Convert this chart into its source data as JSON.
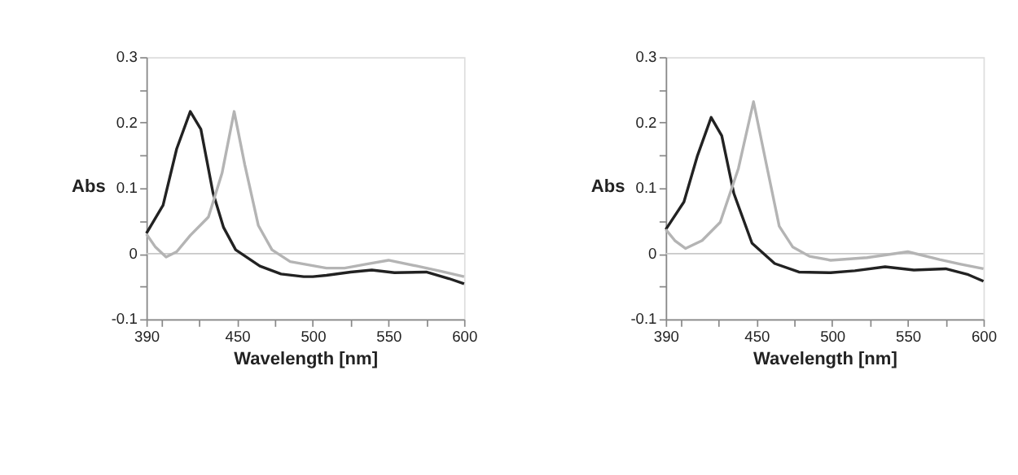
{
  "chart_data": [
    {
      "type": "line",
      "xlabel": "Wavelength [nm]",
      "ylabel": "Abs",
      "xlim": [
        390,
        600
      ],
      "ylim": [
        -0.1,
        0.3
      ],
      "xticks": [
        390,
        {
          "value": 400,
          "label": null
        },
        {
          "value": 425,
          "label": null
        },
        450,
        {
          "value": 475,
          "label": null
        },
        500,
        {
          "value": 525,
          "label": null
        },
        550,
        {
          "value": 575,
          "label": null
        },
        600
      ],
      "yticks": [
        -0.1,
        {
          "value": -0.05,
          "label": null
        },
        0,
        {
          "value": 0.05,
          "label": null
        },
        0.1,
        {
          "value": 0.15,
          "label": null
        },
        0.2,
        {
          "value": 0.25,
          "label": null
        },
        0.3
      ],
      "grid": false,
      "legend": false,
      "line_style": "solid",
      "marker": "none",
      "ref_lines": [
        {
          "axis": "y",
          "value": 0,
          "color": "#c8c8c8"
        }
      ],
      "series": [
        {
          "color": "#222222",
          "x": [
            390,
            401,
            410,
            419,
            426,
            434,
            441,
            449,
            465,
            479,
            494,
            500,
            509,
            525,
            539,
            554,
            575,
            590,
            600
          ],
          "values": [
            0.031,
            0.074,
            0.16,
            0.217,
            0.19,
            0.093,
            0.04,
            0.006,
            -0.019,
            -0.031,
            -0.035,
            -0.035,
            -0.033,
            -0.028,
            -0.025,
            -0.029,
            -0.028,
            -0.038,
            -0.046
          ]
        },
        {
          "color": "#b4b4b4",
          "x": [
            390,
            396,
            403,
            410,
            419,
            431,
            440,
            448,
            455,
            464,
            473,
            485,
            509,
            521,
            535,
            550,
            569,
            585,
            600
          ],
          "values": [
            0.03,
            0.01,
            -0.005,
            0.003,
            0.028,
            0.056,
            0.123,
            0.217,
            0.136,
            0.043,
            0.006,
            -0.012,
            -0.022,
            -0.022,
            -0.016,
            -0.01,
            -0.019,
            -0.027,
            -0.035
          ]
        }
      ]
    },
    {
      "type": "line",
      "xlabel": "Wavelength [nm]",
      "ylabel": "Abs",
      "xlim": [
        390,
        600
      ],
      "ylim": [
        -0.1,
        0.3
      ],
      "xticks": [
        390,
        {
          "value": 400,
          "label": null
        },
        {
          "value": 425,
          "label": null
        },
        450,
        {
          "value": 475,
          "label": null
        },
        500,
        {
          "value": 525,
          "label": null
        },
        550,
        {
          "value": 575,
          "label": null
        },
        600
      ],
      "yticks": [
        -0.1,
        {
          "value": -0.05,
          "label": null
        },
        0,
        {
          "value": 0.05,
          "label": null
        },
        0.1,
        {
          "value": 0.15,
          "label": null
        },
        0.2,
        {
          "value": 0.25,
          "label": null
        },
        0.3
      ],
      "grid": false,
      "legend": false,
      "line_style": "solid",
      "marker": "none",
      "ref_lines": [
        {
          "axis": "y",
          "value": 0,
          "color": "#c8c8c8"
        }
      ],
      "series": [
        {
          "color": "#222222",
          "x": [
            390,
            402,
            411,
            420,
            427,
            435,
            447,
            462,
            478,
            499,
            515,
            535,
            554,
            575,
            590,
            600
          ],
          "values": [
            0.037,
            0.079,
            0.15,
            0.208,
            0.18,
            0.092,
            0.016,
            -0.015,
            -0.028,
            -0.029,
            -0.026,
            -0.02,
            -0.025,
            -0.023,
            -0.032,
            -0.042
          ]
        },
        {
          "color": "#b4b4b4",
          "x": [
            390,
            396,
            403,
            414,
            426,
            438,
            448,
            456,
            465,
            474,
            485,
            499,
            523,
            550,
            571,
            585,
            600
          ],
          "values": [
            0.037,
            0.02,
            0.008,
            0.02,
            0.048,
            0.13,
            0.232,
            0.142,
            0.042,
            0.01,
            -0.004,
            -0.01,
            -0.006,
            0.003,
            -0.009,
            -0.016,
            -0.023
          ]
        }
      ]
    }
  ]
}
